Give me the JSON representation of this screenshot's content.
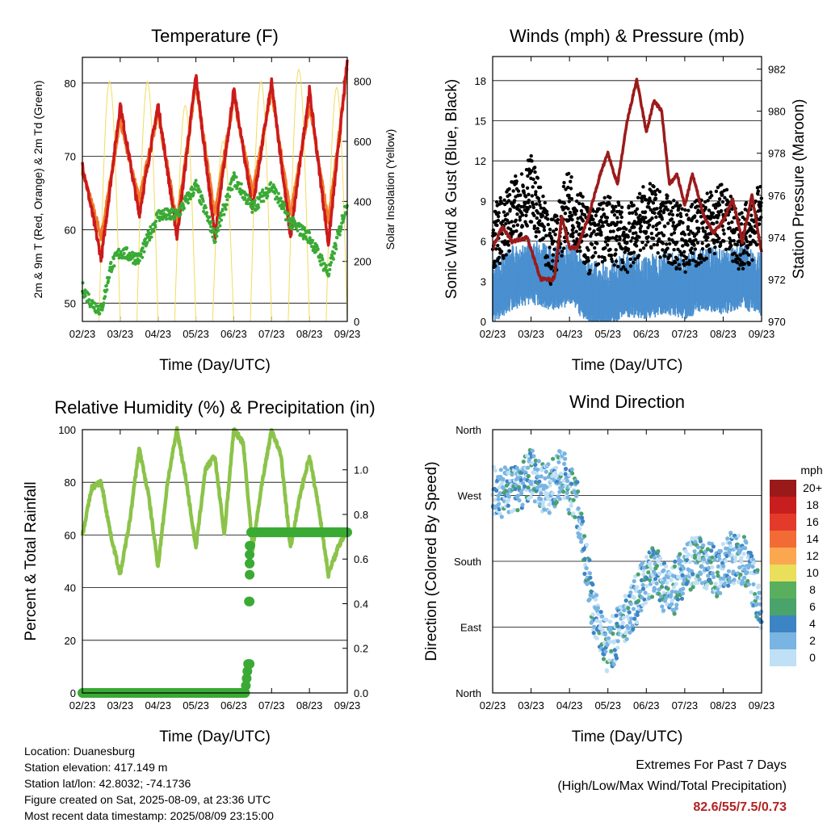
{
  "chart_data": [
    {
      "type": "line",
      "title": "Temperature (F)",
      "xlabel": "Time (Day/UTC)",
      "ylabel": "2m & 9m T (Red, Orange) & 2m Td (Green)",
      "y2label": "Solar Insolation (Yellow)",
      "x_ticks": [
        "02/23",
        "03/23",
        "04/23",
        "05/23",
        "06/23",
        "07/23",
        "08/23",
        "09/23"
      ],
      "ylim": [
        47.5,
        83.5
      ],
      "yticks": [
        50,
        60,
        70,
        80
      ],
      "y2lim": [
        0,
        880
      ],
      "y2ticks": [
        0,
        200,
        400,
        600,
        800
      ],
      "grid": true,
      "series": [
        {
          "name": "2m T",
          "color": "#cc1a1a",
          "x": [
            0,
            0.5,
            1.0,
            1.5,
            2.0,
            2.5,
            3.0,
            3.5,
            4.0,
            4.5,
            5.0,
            5.5,
            6.0,
            6.5,
            7.0
          ],
          "values": [
            69,
            56,
            77,
            62,
            77,
            59,
            81,
            59,
            79,
            63,
            80,
            59,
            79,
            58,
            83
          ]
        },
        {
          "name": "9m T",
          "color": "#f07b2a",
          "x": [
            0,
            0.5,
            1.0,
            1.5,
            2.0,
            2.5,
            3.0,
            3.5,
            4.0,
            4.5,
            5.0,
            5.5,
            6.0,
            6.5,
            7.0
          ],
          "values": [
            68,
            59,
            75,
            64,
            76,
            61,
            80,
            62,
            78,
            65,
            79,
            62,
            77,
            61,
            82
          ]
        },
        {
          "name": "2m Td",
          "color": "#3aaa35",
          "x": [
            0,
            0.25,
            0.5,
            0.75,
            1.0,
            1.5,
            2.0,
            2.5,
            3.0,
            3.5,
            4.0,
            4.5,
            5.0,
            5.5,
            6.0,
            6.5,
            7.0
          ],
          "values": [
            52,
            50,
            49,
            55,
            57,
            56,
            62,
            62,
            66,
            59,
            67,
            63,
            66,
            61,
            59,
            54,
            64
          ]
        },
        {
          "name": "Solar Insolation",
          "color": "#f2dc5d",
          "axis": "y2",
          "peaks": [
            800,
            800,
            720,
            600,
            800,
            840,
            780
          ]
        }
      ]
    },
    {
      "type": "line",
      "title": "Winds (mph) & Pressure (mb)",
      "xlabel": "Time (Day/UTC)",
      "ylabel": "Sonic Wind & Gust (Blue, Black)",
      "y2label": "Station Pressure (Maroon)",
      "x_ticks": [
        "02/23",
        "03/23",
        "04/23",
        "05/23",
        "06/23",
        "07/23",
        "08/23",
        "09/23"
      ],
      "ylim": [
        0,
        19.8
      ],
      "yticks": [
        0,
        3,
        6,
        9,
        12,
        15,
        18
      ],
      "y2lim": [
        970,
        982.6
      ],
      "y2ticks": [
        970,
        972,
        974,
        976,
        978,
        980,
        982
      ],
      "grid": true,
      "series": [
        {
          "name": "Sonic Wind",
          "color": "#4a90d0",
          "x": [
            0,
            0.5,
            1.0,
            1.5,
            2.0,
            2.5,
            3.0,
            3.5,
            4.0,
            4.5,
            5.0,
            5.5,
            6.0,
            6.5,
            7.0
          ],
          "values": [
            2.5,
            3.5,
            4,
            3.5,
            3.8,
            2.5,
            2.2,
            3,
            2.8,
            3.2,
            2.8,
            3.5,
            3.2,
            3.6,
            3.0
          ]
        },
        {
          "name": "Gust",
          "color": "#000000",
          "x": [
            0,
            0.5,
            1.0,
            1.5,
            2.0,
            2.5,
            3.0,
            3.5,
            4.0,
            4.5,
            5.0,
            5.5,
            6.0,
            6.5,
            7.0
          ],
          "values": [
            6,
            8,
            10,
            5,
            9,
            6,
            7,
            6,
            8,
            7,
            6,
            7,
            8,
            6,
            8
          ]
        },
        {
          "name": "Station Pressure",
          "color": "#9b1b1b",
          "axis": "y2",
          "x": [
            0,
            0.25,
            0.5,
            0.9,
            1.25,
            1.6,
            1.8,
            2.0,
            2.2,
            2.5,
            2.8,
            3.0,
            3.25,
            3.5,
            3.75,
            4.0,
            4.2,
            4.4,
            4.6,
            4.8,
            5.0,
            5.2,
            5.5,
            5.75,
            6.0,
            6.25,
            6.5,
            6.75,
            7.0
          ],
          "values": [
            973.5,
            974.5,
            973.8,
            974,
            972,
            972,
            975,
            973.5,
            973.5,
            975,
            977,
            978,
            976.5,
            979.5,
            981.5,
            979,
            980.5,
            980,
            976.5,
            977,
            975.5,
            977,
            975,
            974.2,
            974.8,
            975.8,
            973.8,
            976,
            973.3
          ]
        }
      ]
    },
    {
      "type": "line",
      "title": "Relative Humidity (%) & Precipitation (in)",
      "xlabel": "Time (Day/UTC)",
      "ylabel": "Percent & Total Rainfall",
      "x_ticks": [
        "02/23",
        "03/23",
        "04/23",
        "05/23",
        "06/23",
        "07/23",
        "08/23",
        "09/23"
      ],
      "ylim": [
        0,
        100
      ],
      "yticks": [
        0,
        20,
        40,
        60,
        80,
        100
      ],
      "y2lim": [
        0,
        1.18
      ],
      "y2ticks": [
        0.0,
        0.2,
        0.4,
        0.6,
        0.8,
        1.0
      ],
      "grid": true,
      "series": [
        {
          "name": "Relative Humidity",
          "color": "#8bc34a",
          "x": [
            0,
            0.25,
            0.5,
            0.75,
            1.0,
            1.25,
            1.5,
            1.75,
            2.0,
            2.25,
            2.5,
            2.75,
            3.0,
            3.25,
            3.5,
            3.75,
            4.0,
            4.25,
            4.5,
            4.75,
            5.0,
            5.25,
            5.5,
            5.75,
            6.0,
            6.25,
            6.5,
            6.75,
            7.0
          ],
          "values": [
            60,
            78,
            80,
            60,
            45,
            65,
            93,
            75,
            48,
            80,
            100,
            80,
            55,
            85,
            90,
            60,
            100,
            95,
            55,
            80,
            100,
            90,
            55,
            75,
            90,
            70,
            45,
            55,
            62
          ]
        },
        {
          "name": "Total Rainfall",
          "color": "#3aaa35",
          "axis": "y2",
          "x": [
            0,
            4.3,
            4.38,
            4.4,
            4.41,
            4.42,
            4.43,
            4.44,
            4.46,
            7.0
          ],
          "values": [
            0,
            0,
            0.13,
            0.41,
            0.53,
            0.58,
            0.62,
            0.66,
            0.72,
            0.72
          ]
        }
      ]
    },
    {
      "type": "scatter",
      "title": "Wind Direction",
      "xlabel": "Time (Day/UTC)",
      "ylabel": "Direction (Colored By Speed)",
      "x_ticks": [
        "02/23",
        "03/23",
        "04/23",
        "05/23",
        "06/23",
        "07/23",
        "08/23",
        "09/23"
      ],
      "yticks": [
        "North",
        "East",
        "South",
        "West",
        "North"
      ],
      "ylim": [
        0,
        360
      ],
      "colorbar": {
        "title": "mph",
        "labels": [
          "20+",
          "18",
          "16",
          "14",
          "12",
          "10",
          "8",
          "6",
          "4",
          "2",
          "0"
        ],
        "colors": [
          "#9a1a1a",
          "#c81e1e",
          "#e43a2a",
          "#f26b35",
          "#fba74f",
          "#e9df5a",
          "#5aaf5f",
          "#4aa36a",
          "#3d84c4",
          "#79b4e2",
          "#bfe0f5"
        ]
      },
      "series": [
        {
          "name": "Direction",
          "x": [
            0.2,
            0.6,
            1.0,
            1.4,
            1.8,
            2.2,
            2.6,
            3.0,
            3.4,
            3.8,
            4.2,
            4.6,
            5.0,
            5.4,
            5.8,
            6.2,
            6.6,
            7.0
          ],
          "values": [
            275,
            280,
            300,
            275,
            300,
            260,
            120,
            60,
            95,
            135,
            170,
            130,
            170,
            185,
            165,
            185,
            180,
            120
          ]
        }
      ]
    }
  ],
  "info": {
    "location": "Location: Duanesburg",
    "elevation": "Station elevation: 417.149 m",
    "latlon": "Station lat/lon: 42.8032; -74.1736",
    "created": "Figure created on Sat, 2025-08-09, at 23:36 UTC",
    "recent": "Most recent data timestamp: 2025/08/09 23:15:00"
  },
  "extremes": {
    "line1": "Extremes For Past 7 Days",
    "line2": "(High/Low/Max Wind/Total Precipitation)",
    "values": "82.6/55/7.5/0.73"
  }
}
